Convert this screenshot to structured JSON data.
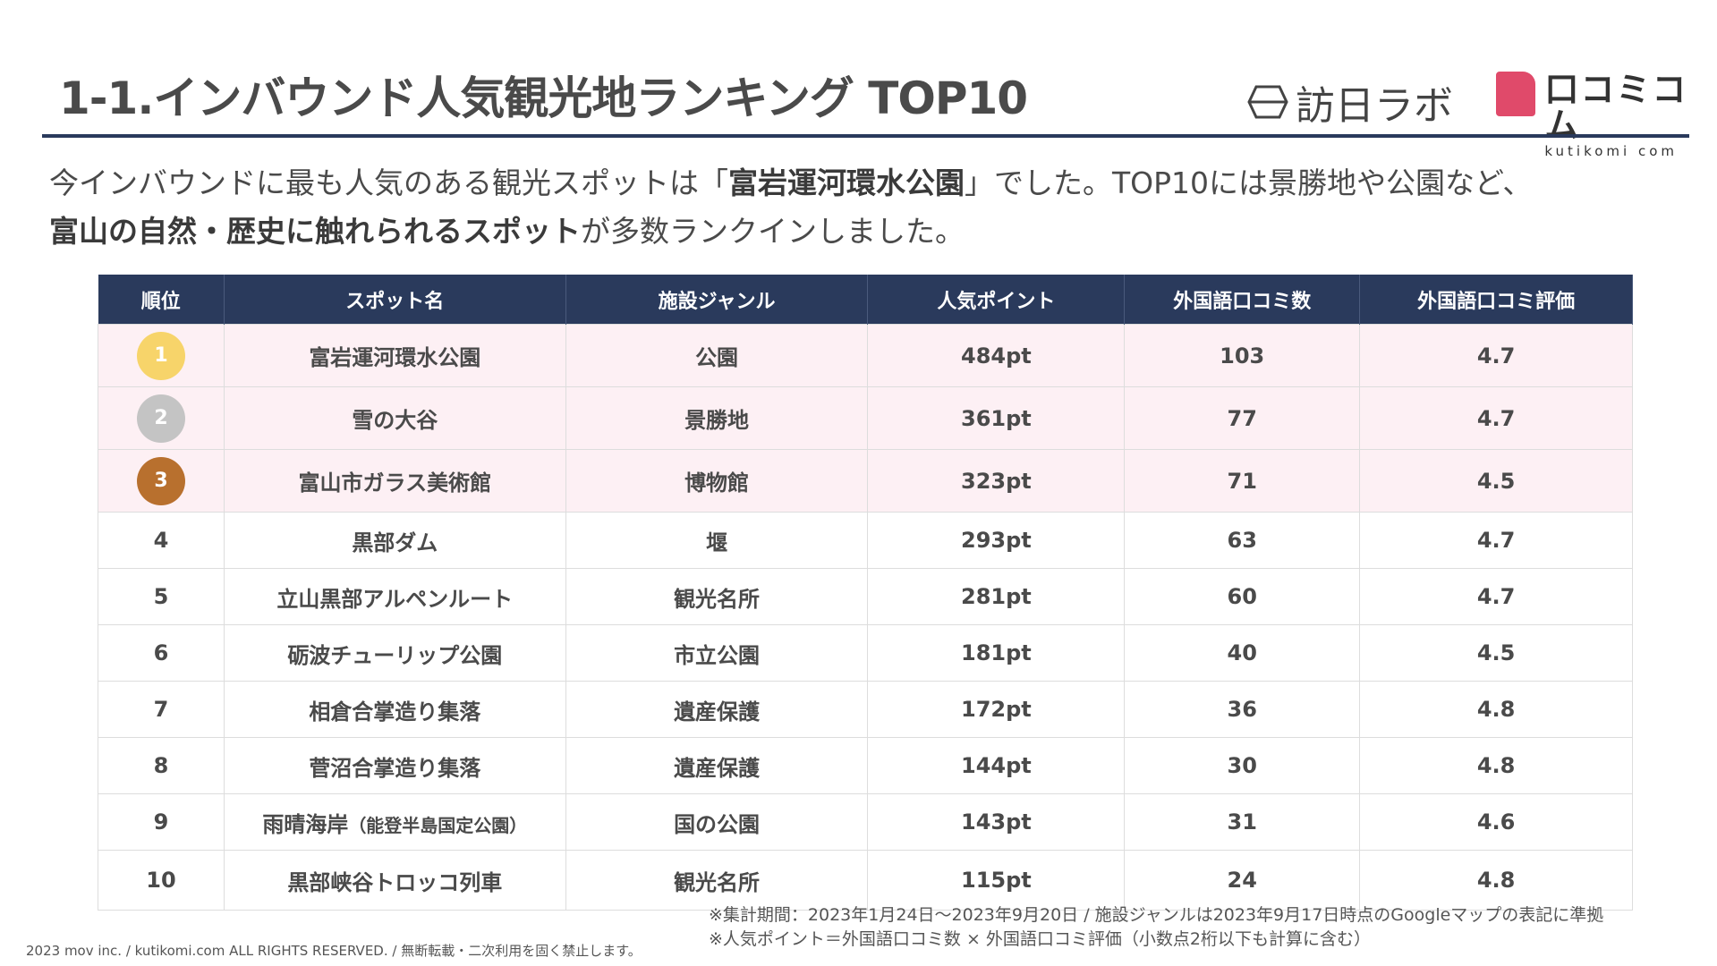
{
  "header": {
    "title": "1-1.インバウンド人気観光地ランキング TOP10",
    "logo_houniti": "訪日ラボ",
    "logo_kutikomi": "口コミコム",
    "logo_kutikomi_sub": "kutikomi com"
  },
  "lead": {
    "line1_a": "今インバウンドに最も人気のある観光スポットは「",
    "line1_bold": "富岩運河環水公園",
    "line1_b": "」でした。TOP10には景勝地や公園など、",
    "line2_bold": "富山の自然・歴史に触れられるスポット",
    "line2_b": "が多数ランクインしました。"
  },
  "colors": {
    "header_bg": "#2a3a5c",
    "top3_bg": "#fdf0f4",
    "gold": "#f7d46a",
    "silver": "#c4c4c4",
    "bronze": "#b8702e",
    "brand_pink": "#e04a6a"
  },
  "table": {
    "columns": [
      "順位",
      "スポット名",
      "施設ジャンル",
      "人気ポイント",
      "外国語口コミ数",
      "外国語口コミ評価"
    ],
    "rows": [
      {
        "rank": "1",
        "name": "富岩運河環水公園",
        "genre": "公園",
        "points": "484pt",
        "reviews": "103",
        "rating": "4.7"
      },
      {
        "rank": "2",
        "name": "雪の大谷",
        "genre": "景勝地",
        "points": "361pt",
        "reviews": "77",
        "rating": "4.7"
      },
      {
        "rank": "3",
        "name": "富山市ガラス美術館",
        "genre": "博物館",
        "points": "323pt",
        "reviews": "71",
        "rating": "4.5"
      },
      {
        "rank": "4",
        "name": "黒部ダム",
        "genre": "堰",
        "points": "293pt",
        "reviews": "63",
        "rating": "4.7"
      },
      {
        "rank": "5",
        "name": "立山黒部アルペンルート",
        "genre": "観光名所",
        "points": "281pt",
        "reviews": "60",
        "rating": "4.7"
      },
      {
        "rank": "6",
        "name": "砺波チューリップ公園",
        "genre": "市立公園",
        "points": "181pt",
        "reviews": "40",
        "rating": "4.5"
      },
      {
        "rank": "7",
        "name": "相倉合掌造り集落",
        "genre": "遺産保護",
        "points": "172pt",
        "reviews": "36",
        "rating": "4.8"
      },
      {
        "rank": "8",
        "name": "菅沼合掌造り集落",
        "genre": "遺産保護",
        "points": "144pt",
        "reviews": "30",
        "rating": "4.8"
      },
      {
        "rank": "9",
        "name": "雨晴海岸",
        "name_note": "（能登半島国定公園）",
        "genre": "国の公園",
        "points": "143pt",
        "reviews": "31",
        "rating": "4.6"
      },
      {
        "rank": "10",
        "name": "黒部峡谷トロッコ列車",
        "genre": "観光名所",
        "points": "115pt",
        "reviews": "24",
        "rating": "4.8"
      }
    ]
  },
  "notes": [
    "※集計期間：2023年1月24日～2023年9月20日 / 施設ジャンルは2023年9月17日時点のGoogleマップの表記に準拠",
    "※人気ポイント＝外国語口コミ数 × 外国語口コミ評価（小数点2桁以下も計算に含む）"
  ],
  "footer": {
    "copyright": "2023 mov inc. / kutikomi.com ALL RIGHTS RESERVED. / 無断転載・二次利用を固く禁止します。"
  }
}
